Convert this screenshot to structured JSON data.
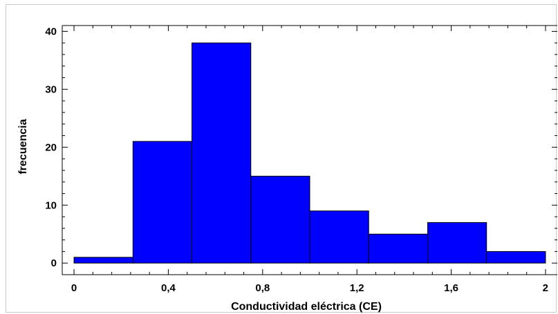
{
  "chart_data": {
    "type": "bar",
    "subtype": "histogram",
    "xlabel": "Conductividad eléctrica (CE)",
    "ylabel": "frecuencia",
    "xlim": [
      -0.05,
      2.05
    ],
    "ylim": [
      -2,
      41
    ],
    "x_ticks": [
      "0",
      "0,4",
      "0,8",
      "1,2",
      "1,6",
      "2"
    ],
    "y_ticks": [
      "0",
      "10",
      "20",
      "30",
      "40"
    ],
    "bins": [
      {
        "from": 0.0,
        "to": 0.25,
        "value": 1
      },
      {
        "from": 0.25,
        "to": 0.5,
        "value": 21
      },
      {
        "from": 0.5,
        "to": 0.75,
        "value": 38
      },
      {
        "from": 0.75,
        "to": 1.0,
        "value": 15
      },
      {
        "from": 1.0,
        "to": 1.25,
        "value": 9
      },
      {
        "from": 1.25,
        "to": 1.5,
        "value": 5
      },
      {
        "from": 1.5,
        "to": 1.75,
        "value": 7
      },
      {
        "from": 1.75,
        "to": 2.0,
        "value": 2
      }
    ],
    "bar_color": "#0000ff",
    "grid": false
  }
}
